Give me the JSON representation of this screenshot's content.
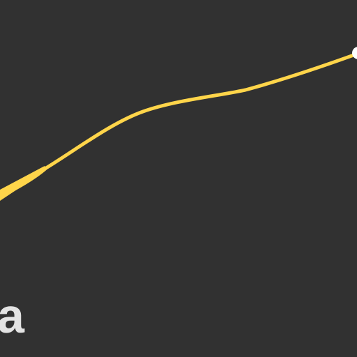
{
  "colors": {
    "background": "#313131",
    "curve": "#ffd54a",
    "letter": "#e3e3e3",
    "knob": "#ffffff"
  },
  "label": {
    "text": "a"
  },
  "curve": {
    "description_icon": "progress-curve"
  }
}
